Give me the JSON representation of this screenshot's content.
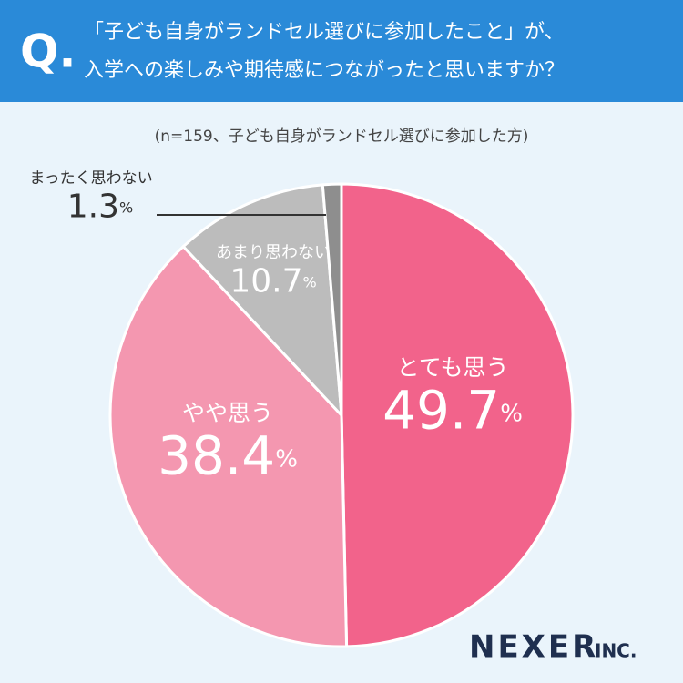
{
  "header": {
    "marker": "Q.",
    "title": [
      "「子ども自身がランドセル選びに参加したこと」が、",
      "入学への楽しみや期待感につながったと思いますか？"
    ]
  },
  "chart_data": {
    "type": "pie",
    "subtitle": "(n=159、子ども自身がランドセル選びに参加した方)",
    "categories": [
      "とても思う",
      "やや思う",
      "あまり思わない",
      "まったく思わない"
    ],
    "values": [
      49.7,
      38.4,
      10.7,
      1.3
    ],
    "value_labels": [
      "49.7%",
      "38.4%",
      "10.7%",
      "1.3%"
    ],
    "colors": [
      "#f2638b",
      "#f497b0",
      "#bcbcbc",
      "#8e8e8e"
    ]
  },
  "brand": {
    "name": "NEXER",
    "suffix": "INC."
  }
}
